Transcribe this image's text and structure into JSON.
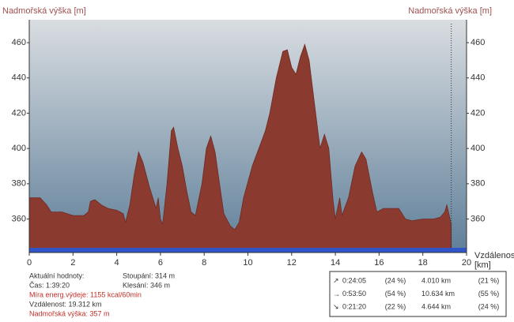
{
  "chart_data": {
    "type": "area",
    "y_label": "Nadmořská výška [m]",
    "y2_label": "Nadmořská výška [m]",
    "x_label": "Vzdálenost",
    "x_unit": "[km]",
    "xlim": [
      0,
      20
    ],
    "xticks": [
      0,
      2,
      4,
      6,
      8,
      10,
      12,
      14,
      16,
      18,
      20
    ],
    "ylim": [
      341,
      473
    ],
    "yticks": [
      360,
      380,
      400,
      420,
      440,
      460
    ],
    "series": [
      {
        "color": "#8b3a2f",
        "x": [
          0,
          0.5,
          0.8,
          1,
          1.5,
          2,
          2.5,
          2.7,
          2.8,
          3,
          3.3,
          3.6,
          4,
          4.3,
          4.4,
          4.6,
          4.8,
          5,
          5.2,
          5.5,
          5.8,
          5.9,
          6.0,
          6.1,
          6.3,
          6.5,
          6.6,
          6.8,
          7.0,
          7.2,
          7.4,
          7.6,
          7.9,
          8.1,
          8.3,
          8.5,
          8.7,
          8.9,
          9.2,
          9.4,
          9.6,
          9.8,
          10.2,
          10.5,
          10.8,
          11.0,
          11.3,
          11.6,
          11.8,
          12.0,
          12.2,
          12.4,
          12.6,
          12.8,
          13.0,
          13.3,
          13.5,
          13.7,
          13.9,
          14.0,
          14.2,
          14.3,
          14.6,
          14.9,
          15.2,
          15.4,
          15.7,
          15.9,
          16.2,
          16.6,
          16.9,
          17.2,
          17.5,
          18.0,
          18.5,
          18.8,
          19.0,
          19.1,
          19.3
        ],
        "values": [
          372,
          372,
          368,
          364,
          364,
          362,
          362,
          364,
          370,
          371,
          368,
          366,
          365,
          363,
          358,
          368,
          385,
          398,
          392,
          378,
          366,
          372,
          360,
          357,
          380,
          410,
          412,
          400,
          390,
          376,
          364,
          362,
          380,
          400,
          407,
          398,
          380,
          363,
          356,
          354,
          358,
          372,
          390,
          400,
          410,
          420,
          440,
          455,
          456,
          446,
          442,
          452,
          459,
          450,
          430,
          400,
          408,
          400,
          370,
          360,
          372,
          362,
          372,
          390,
          398,
          394,
          375,
          364,
          366,
          366,
          366,
          360,
          359,
          360,
          360,
          361,
          364,
          368,
          357
        ]
      }
    ]
  },
  "panel": {
    "left": [
      "Aktuální hodnoty:",
      "Čas: 1:39:20",
      "Míra energ.výdeje: 1155 kcal/60min",
      "Vzdálenost: 19.312 km",
      "Nadmořská výška: 357 m"
    ],
    "middle": [
      "Stoupání: 314 m",
      "Klesání: 346 m"
    ],
    "table": [
      [
        "0:24:05",
        "(24 %)",
        "4.010 km",
        "(21 %)"
      ],
      [
        "0:53:50",
        "(54 %)",
        "10.634 km",
        "(55 %)"
      ],
      [
        "0:21:20",
        "(22 %)",
        "4.644 km",
        "(24 %)"
      ]
    ]
  }
}
